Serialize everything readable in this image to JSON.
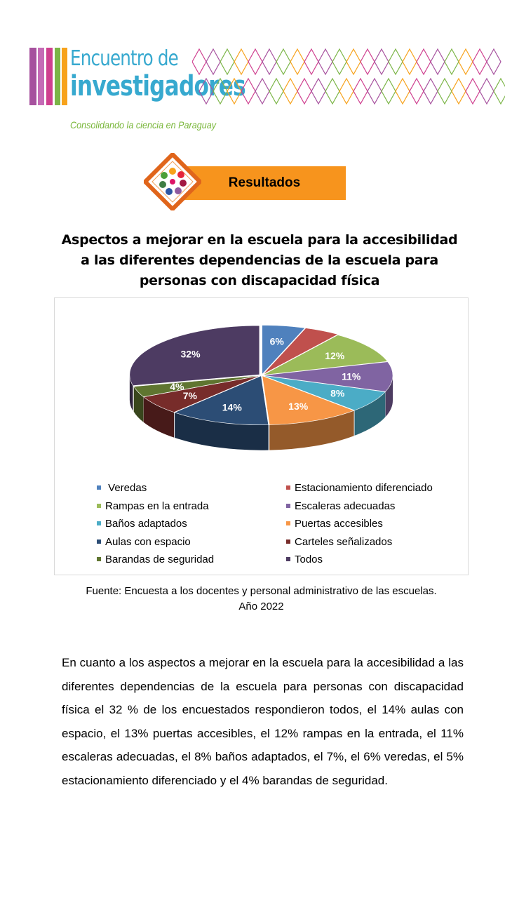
{
  "logo": {
    "line1": "Encuentro de",
    "line2": "investigadores",
    "tagline": "Consolidando la ciencia en Paraguay",
    "colors": {
      "primary": "#37a9cf",
      "tagline": "#78b638",
      "bars": [
        "#a6519e",
        "#cf3f8f",
        "#7bb547",
        "#f7a21b"
      ]
    }
  },
  "section": {
    "label": "Resultados",
    "bar_color": "#f7941d",
    "frame_color": "#e0651b"
  },
  "chart_data": {
    "type": "pie",
    "title": "Aspectos a mejorar en la escuela para la accesibilidad a las diferentes dependencias de la escuela para personas con discapacidad física",
    "style": "3d exploded pie, legend at bottom in two columns",
    "series": [
      {
        "name": "Veredas",
        "value": 6,
        "label": "6%",
        "color": "#4f81bd"
      },
      {
        "name": "Estacionamiento diferenciado",
        "value": 5,
        "label": "",
        "color": "#c0504d"
      },
      {
        "name": "Rampas en la entrada",
        "value": 12,
        "label": "12%",
        "color": "#9bbb59"
      },
      {
        "name": "Escaleras adecuadas",
        "value": 11,
        "label": "11%",
        "color": "#8064a2"
      },
      {
        "name": "Baños adaptados",
        "value": 8,
        "label": "8%",
        "color": "#4bacc6"
      },
      {
        "name": "Puertas accesibles",
        "value": 13,
        "label": "13%",
        "color": "#f79646"
      },
      {
        "name": "Aulas con espacio",
        "value": 14,
        "label": "14%",
        "color": "#2c4d75"
      },
      {
        "name": "Carteles señalizados",
        "value": 7,
        "label": "7%",
        "color": "#772c2a"
      },
      {
        "name": "Barandas de seguridad",
        "value": 4,
        "label": "4%",
        "color": "#5f7530"
      },
      {
        "name": "Todos",
        "value": 32,
        "label": "32%",
        "color": "#4d3b62"
      }
    ],
    "legend_labels": [
      " Veredas",
      "Estacionamiento diferenciado",
      "Rampas en la entrada",
      "Escaleras adecuadas",
      "Baños adaptados",
      "Puertas accesibles",
      "Aulas con espacio",
      "Carteles señalizados",
      "Barandas de seguridad",
      "Todos"
    ]
  },
  "source": {
    "line1": "Fuente: Encuesta a los docentes y personal administrativo de las escuelas.",
    "line2": "Año 2022"
  },
  "body": {
    "paragraph": "En cuanto a los aspectos a mejorar en la escuela para la accesibilidad a las diferentes dependencias de la escuela para personas con discapacidad física el 32 % de los encuestados respondieron todos, el 14% aulas con espacio, el 13% puertas accesibles, el 12% rampas en la entrada, el 11% escaleras adecuadas, el 8% baños adaptados, el 7%, el 6% veredas, el 5% estacionamiento diferenciado y el 4% barandas de seguridad."
  }
}
